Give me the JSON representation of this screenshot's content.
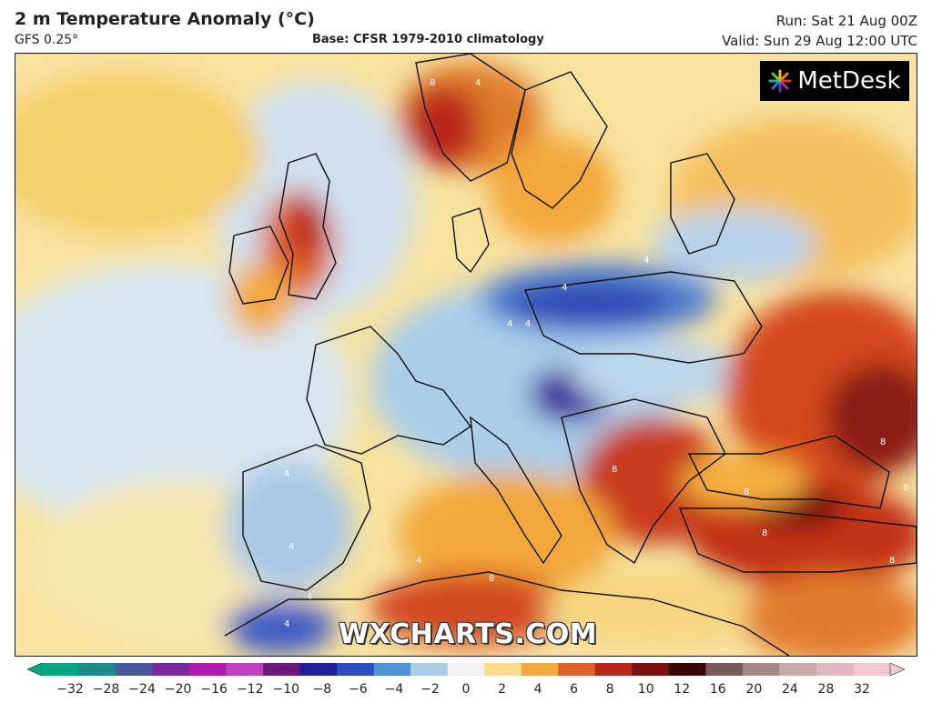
{
  "header": {
    "title": "2 m Temperature Anomaly (°C)",
    "model": "GFS 0.25°",
    "base": "Base: CFSR 1979-2010 climatology",
    "run": "Run: Sat 21 Aug 00Z",
    "valid": "Valid: Sun 29 Aug 12:00 UTC"
  },
  "brand": {
    "name": "MetDesk",
    "icon": "metdesk-starburst-icon"
  },
  "watermark": "WXCHARTS.COM",
  "legend": {
    "ticks": [
      "−32",
      "−28",
      "−24",
      "−20",
      "−16",
      "−12",
      "−10",
      "−8",
      "−6",
      "−4",
      "−2",
      "0",
      "2",
      "4",
      "6",
      "8",
      "10",
      "12",
      "16",
      "20",
      "24",
      "28",
      "32"
    ],
    "colors": [
      "#00a87e",
      "#1b8a8a",
      "#4a5a9a",
      "#7a2a9a",
      "#b01ab0",
      "#c040c0",
      "#6a1a7a",
      "#20209a",
      "#2d4ec0",
      "#4f93d6",
      "#aacde8",
      "#f2f2f2",
      "#f8dc8a",
      "#f3a83a",
      "#e0622a",
      "#b8281c",
      "#7a1010",
      "#3a0808",
      "#7a5a5a",
      "#a88888",
      "#c8a8a8",
      "#e0b8c0",
      "#f0c8d0"
    ]
  }
}
